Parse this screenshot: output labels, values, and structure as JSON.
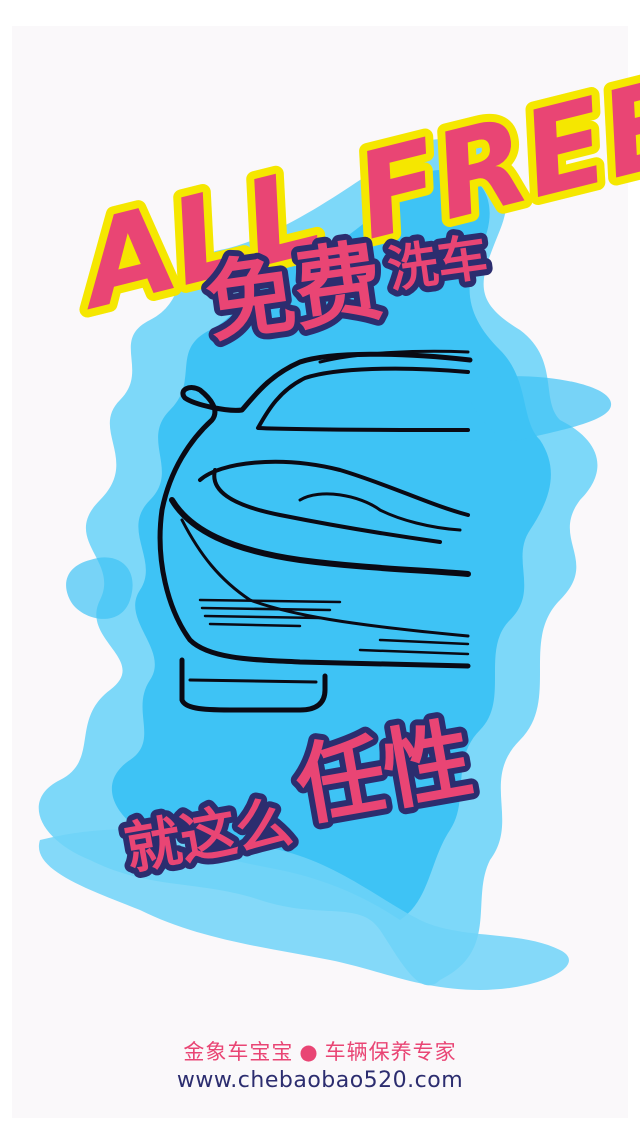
{
  "poster": {
    "headline_en": "ALL FREE",
    "headline_cn_main": "免费",
    "headline_cn_sub": "洗车",
    "slogan_prefix": "就这么",
    "slogan_emphasis": "任性",
    "illustration": "car-outline-icon"
  },
  "footer": {
    "brand": "金象车宝宝",
    "separator": "●",
    "tagline": "车辆保养专家",
    "website": "www.chebaobao520.com"
  },
  "colors": {
    "background": "#faf8fa",
    "splash": "#3ec3f5",
    "splash_light": "#6fd4f8",
    "pink": "#e94574",
    "yellow": "#f5e700",
    "navy": "#2c2d6f",
    "line": "#0a0a14"
  }
}
